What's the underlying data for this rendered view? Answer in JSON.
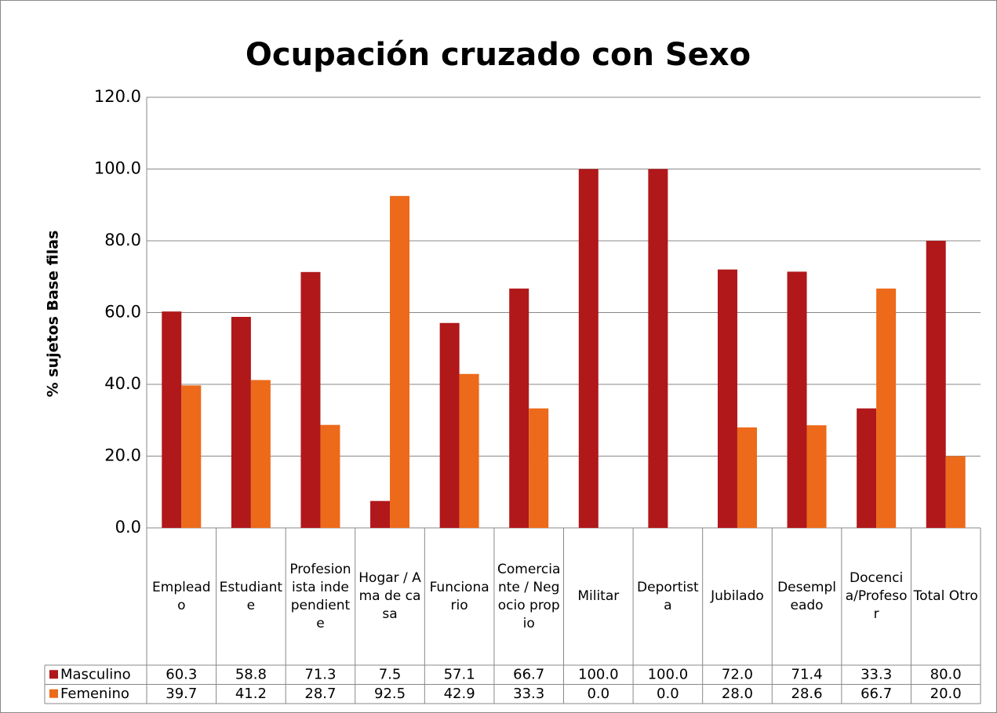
{
  "chart_data": {
    "type": "bar",
    "title": "Ocupación cruzado con Sexo",
    "y_label": "% sujetos Base filas",
    "categories": [
      "Empleado",
      "Estudiante",
      "Profesionista independiente",
      "Hogar / Ama de casa",
      "Funcionario",
      "Comerciante / Negocio propio",
      "Militar",
      "Deportista",
      "Jubilado",
      "Desempleado",
      "Docencia/Profesor",
      "Total Otro"
    ],
    "series": [
      {
        "name": "Masculino",
        "color": "#b0181a",
        "values": [
          60.3,
          58.8,
          71.3,
          7.5,
          57.1,
          66.7,
          100,
          100,
          72,
          71.4,
          33.3,
          80
        ],
        "value_labels": [
          "60.3",
          "58.8",
          "71.3",
          "7.5",
          "57.1",
          "66.7",
          "100.0",
          "100.0",
          "72.0",
          "71.4",
          "33.3",
          "80.0"
        ]
      },
      {
        "name": "Femenino",
        "color": "#ec6a1a",
        "values": [
          39.7,
          41.2,
          28.7,
          92.5,
          42.9,
          33.3,
          0,
          0,
          28,
          28.6,
          66.7,
          20
        ],
        "value_labels": [
          "39.7",
          "41.2",
          "28.7",
          "92.5",
          "42.9",
          "33.3",
          "0.0",
          "0.0",
          "28.0",
          "28.6",
          "66.7",
          "20.0"
        ]
      }
    ],
    "ylim": [
      0,
      120
    ],
    "yticks": [
      {
        "value": 0,
        "label": "0.0"
      },
      {
        "value": 20,
        "label": "20.0"
      },
      {
        "value": 40,
        "label": "40.0"
      },
      {
        "value": 60,
        "label": "60.0"
      },
      {
        "value": 80,
        "label": "80.0"
      },
      {
        "value": 100,
        "label": "100.0"
      },
      {
        "value": 120,
        "label": "120.0"
      }
    ],
    "grid": true
  }
}
